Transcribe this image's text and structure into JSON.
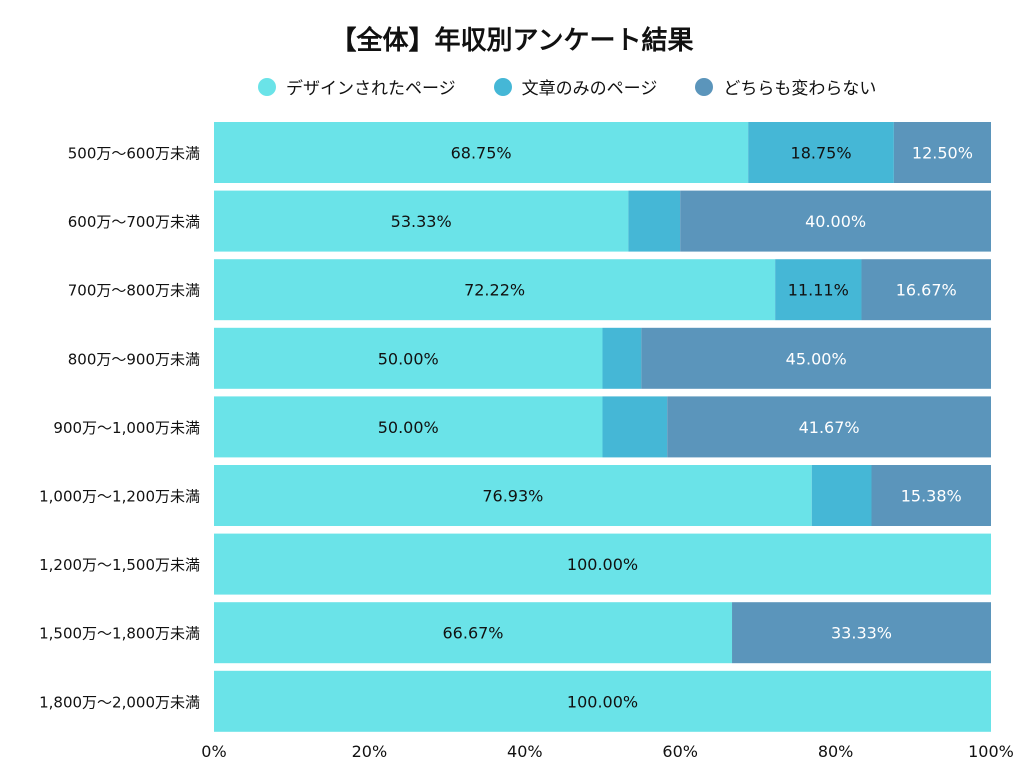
{
  "chart_data": {
    "type": "bar",
    "orientation": "horizontal",
    "stacked": true,
    "title": "【全体】年収別アンケート結果",
    "legend_position": "top",
    "categories": [
      "500万〜600万未満",
      "600万〜700万未満",
      "700万〜800万未満",
      "800万〜900万未満",
      "900万〜1,000万未満",
      "1,000万〜1,200万未満",
      "1,200万〜1,500万未満",
      "1,500万〜1,800万未満",
      "1,800万〜2,000万未満"
    ],
    "series": [
      {
        "name": "デザインされたページ",
        "color": "#6ae3e8",
        "label_color": "#111111",
        "values": [
          68.75,
          53.33,
          72.22,
          50.0,
          50.0,
          76.93,
          100.0,
          66.67,
          100.0
        ],
        "labels": [
          "68.75%",
          "53.33%",
          "72.22%",
          "50.00%",
          "50.00%",
          "76.93%",
          "100.00%",
          "66.67%",
          "100.00%"
        ]
      },
      {
        "name": "文章のみのページ",
        "color": "#45b7d6",
        "label_color": "#111111",
        "values": [
          18.75,
          6.67,
          11.11,
          5.0,
          8.33,
          7.69,
          0,
          0,
          0
        ],
        "labels": [
          "18.75%",
          "",
          "11.11%",
          "",
          "",
          "",
          "",
          "",
          ""
        ]
      },
      {
        "name": "どちらも変わらない",
        "color": "#5b95bb",
        "label_color": "#ffffff",
        "values": [
          12.5,
          40.0,
          16.67,
          45.0,
          41.67,
          15.38,
          0,
          33.33,
          0
        ],
        "labels": [
          "12.50%",
          "40.00%",
          "16.67%",
          "45.00%",
          "41.67%",
          "15.38%",
          "",
          "33.33%",
          ""
        ]
      }
    ],
    "xlim": [
      0,
      100
    ],
    "xticks": [
      "0%",
      "20%",
      "40%",
      "60%",
      "80%",
      "100%"
    ],
    "grid": false
  }
}
